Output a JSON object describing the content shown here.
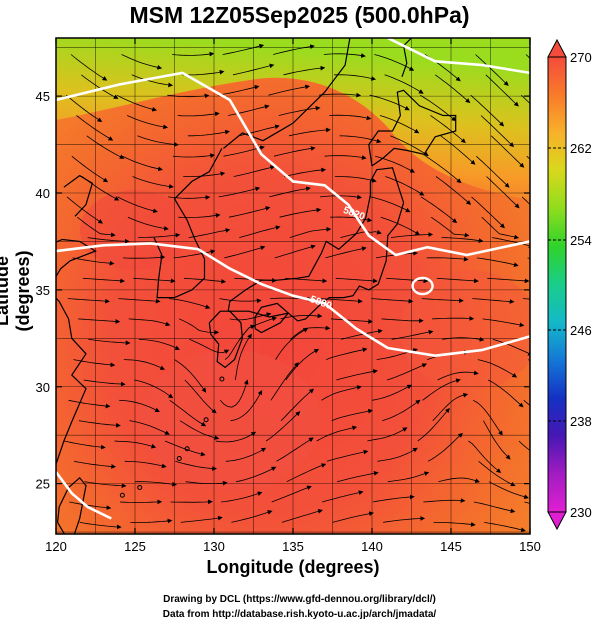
{
  "title": "MSM 12Z05Sep2025 (500.0hPa)",
  "xlabel": "Longitude (degrees)",
  "ylabel": "Latitude  (degrees)",
  "credit_line1": "Drawing by DCL (https://www.gfd-dennou.org/library/dcl/)",
  "credit_line2": "Data from http://database.rish.kyoto-u.ac.jp/arch/jmadata/",
  "map": {
    "lon_range": [
      120,
      150
    ],
    "lat_range": [
      22.4,
      48
    ],
    "x_ticks": [
      120,
      125,
      130,
      135,
      140,
      145,
      150
    ],
    "y_ticks": [
      25,
      30,
      35,
      40,
      45
    ],
    "grid_step_lon": 2.5,
    "grid_step_lat": 2.5
  },
  "contour_labels": [
    {
      "text": "5820",
      "lon": 138.8,
      "lat": 38.8
    },
    {
      "text": "5880",
      "lon": 136.7,
      "lat": 34.2
    }
  ],
  "colorbar": {
    "ticks": [
      270,
      262,
      254,
      246,
      238,
      230
    ],
    "colors": [
      "#f44c3c",
      "#f97a2a",
      "#f8b12a",
      "#d8d81c",
      "#8fdd1e",
      "#2fd32c",
      "#1acd8a",
      "#14b9c9",
      "#1477d6",
      "#1431c4",
      "#4717b4",
      "#a31cc2",
      "#e01fd2"
    ]
  }
}
